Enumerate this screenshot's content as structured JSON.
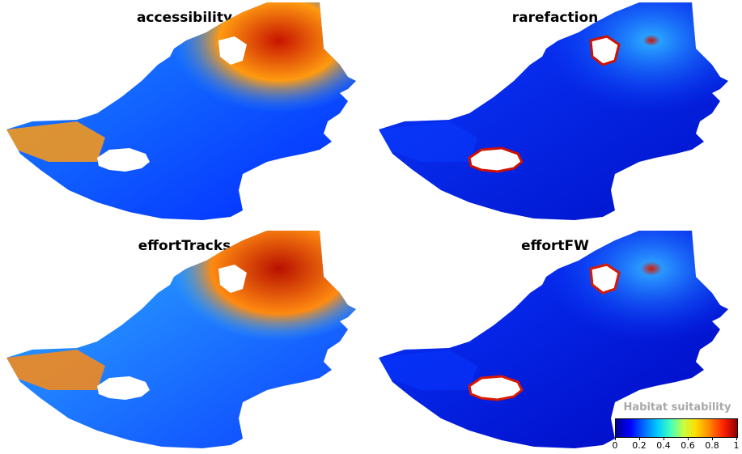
{
  "panels": [
    {
      "title": "accessibility",
      "palette": [
        "#0028ff",
        "#1f8fff",
        "#ff9a10",
        "#c81400"
      ],
      "hot_ratio": 0.55
    },
    {
      "title": "rarefaction",
      "palette": [
        "#0010c8",
        "#0a3cff",
        "#28a0ff",
        "#d01000"
      ],
      "hot_ratio": 0.08
    },
    {
      "title": "effortTracks",
      "palette": [
        "#0a40ff",
        "#30b0ff",
        "#ff8a10",
        "#b81000"
      ],
      "hot_ratio": 0.62
    },
    {
      "title": "effortFW",
      "palette": [
        "#0008c0",
        "#0838ff",
        "#2a98ff",
        "#d81800"
      ],
      "hot_ratio": 0.1
    }
  ],
  "legend": {
    "title": "Habitat suitability",
    "ticks": [
      "0",
      "0.2",
      "0.4",
      "0.6",
      "0.8",
      "1"
    ],
    "colors": [
      "#00008f",
      "#0000ff",
      "#00c8ff",
      "#ffdc00",
      "#ff2000",
      "#8f0000"
    ]
  }
}
